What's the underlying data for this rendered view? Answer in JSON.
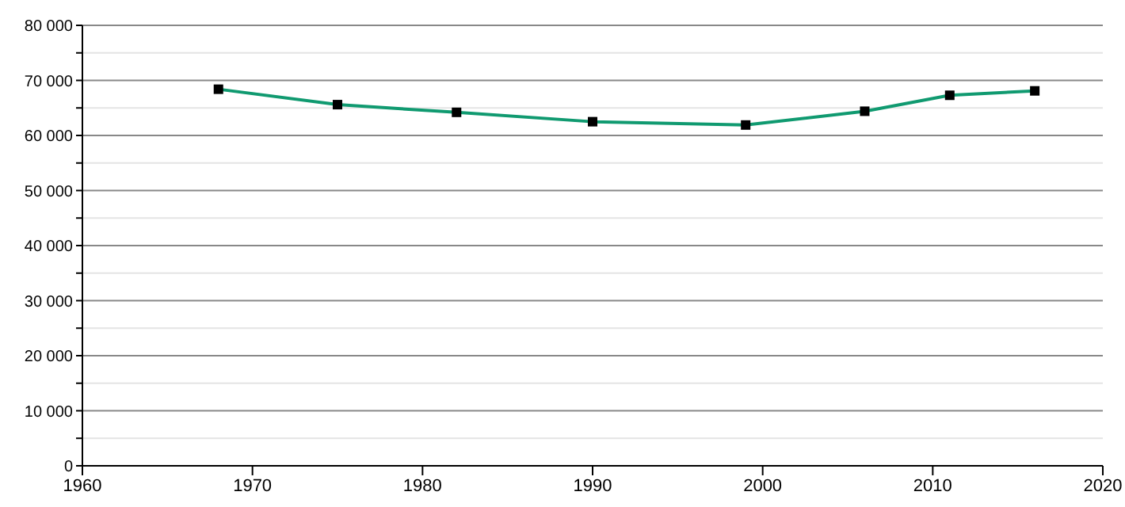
{
  "chart_data": {
    "type": "line",
    "x": [
      1968,
      1975,
      1982,
      1990,
      1999,
      2006,
      2011,
      2016
    ],
    "series": [
      {
        "color": "#109a70",
        "values": [
          68400,
          65600,
          64200,
          62500,
          61900,
          64400,
          67300,
          68100
        ]
      }
    ],
    "xlim": [
      1960,
      2020
    ],
    "xticks": [
      1960,
      1970,
      1980,
      1990,
      2000,
      2010,
      2020
    ],
    "ylim": [
      0,
      80000
    ],
    "yticks": [
      {
        "value": 0,
        "label": "0"
      },
      {
        "value": 5000,
        "label": null
      },
      {
        "value": 10000,
        "label": "10 000"
      },
      {
        "value": 15000,
        "label": null
      },
      {
        "value": 20000,
        "label": "20 000"
      },
      {
        "value": 25000,
        "label": null
      },
      {
        "value": 30000,
        "label": "30 000"
      },
      {
        "value": 35000,
        "label": null
      },
      {
        "value": 40000,
        "label": "40 000"
      },
      {
        "value": 45000,
        "label": null
      },
      {
        "value": 50000,
        "label": "50 000"
      },
      {
        "value": 55000,
        "label": null
      },
      {
        "value": 60000,
        "label": "60 000"
      },
      {
        "value": 65000,
        "label": null
      },
      {
        "value": 70000,
        "label": "70 000"
      },
      {
        "value": 75000,
        "label": null
      },
      {
        "value": 80000,
        "label": "80 000"
      }
    ],
    "grid": "y",
    "marker": "square",
    "line_style": "solid",
    "legend": false
  }
}
